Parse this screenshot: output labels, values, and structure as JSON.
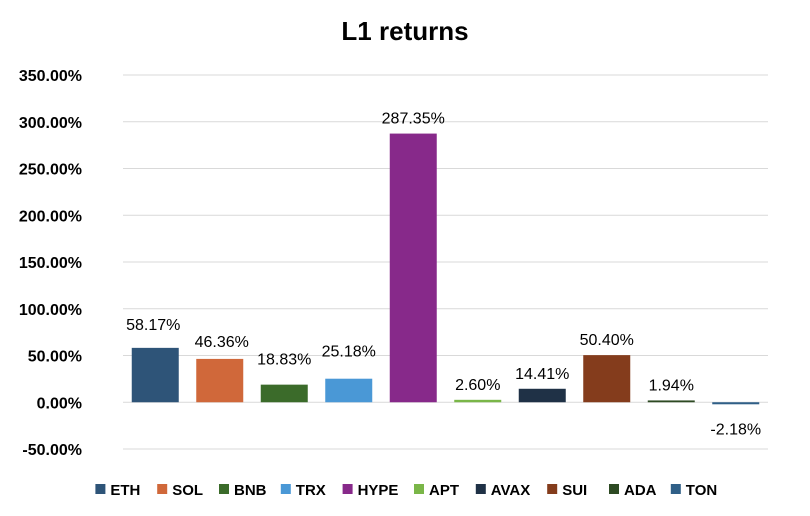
{
  "chart_data": {
    "type": "bar",
    "title": "L1 returns",
    "xlabel": "",
    "ylabel": "",
    "categories": [
      "ETH",
      "SOL",
      "BNB",
      "TRX",
      "HYPE",
      "APT",
      "AVAX",
      "SUI",
      "ADA",
      "TON"
    ],
    "values": [
      58.17,
      46.36,
      18.83,
      25.18,
      287.35,
      2.6,
      14.41,
      50.4,
      1.94,
      -2.18
    ],
    "data_labels": [
      "58.17%",
      "46.36%",
      "18.83%",
      "25.18%",
      "287.35%",
      "2.60%",
      "14.41%",
      "50.40%",
      "1.94%",
      "-2.18%"
    ],
    "colors": [
      "#2e5478",
      "#d0683a",
      "#3b6b2a",
      "#4a98d6",
      "#87298a",
      "#7ab648",
      "#1f3146",
      "#843c1c",
      "#2d4a23",
      "#2f5f87"
    ],
    "ylim": [
      -50,
      350
    ],
    "yticks": [
      -50,
      0,
      50,
      100,
      150,
      200,
      250,
      300,
      350
    ],
    "ytick_labels": [
      "-50.00%",
      "0.00%",
      "50.00%",
      "100.00%",
      "150.00%",
      "200.00%",
      "250.00%",
      "300.00%",
      "350.00%"
    ],
    "grid": true,
    "legend_position": "bottom"
  }
}
